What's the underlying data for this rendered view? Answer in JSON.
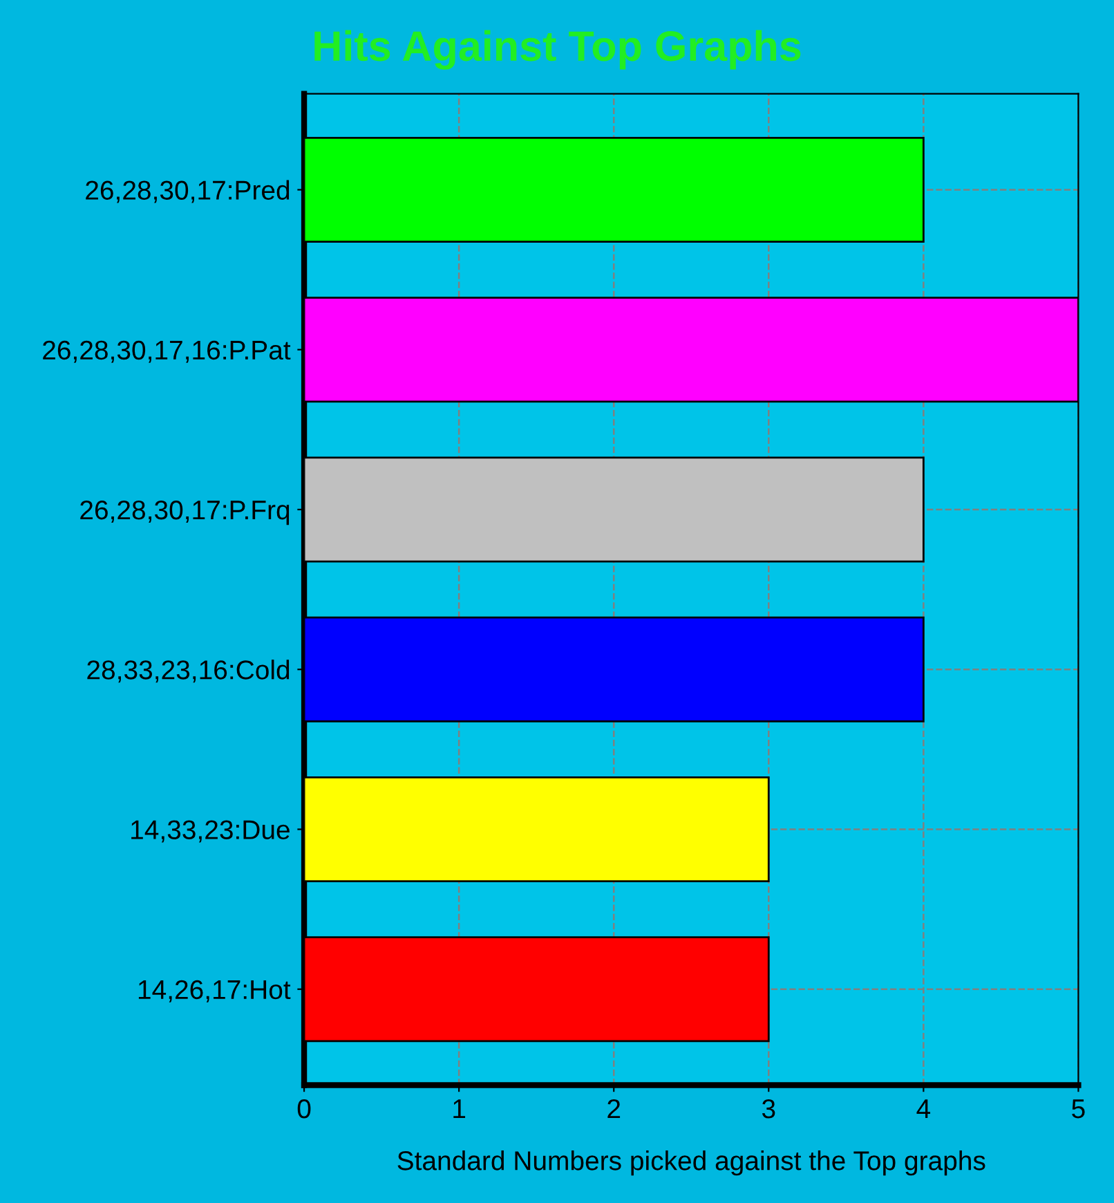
{
  "chart_data": {
    "type": "bar",
    "orientation": "horizontal",
    "title": "Hits Against Top Graphs",
    "xlabel": "Standard Numbers picked against the Top graphs",
    "categories": [
      "26,28,30,17:Pred",
      "26,28,30,17,16:P.Pat",
      "26,28,30,17:P.Frq",
      "28,33,23,16:Cold",
      "14,33,23:Due",
      "14,26,17:Hot"
    ],
    "values": [
      4,
      5,
      4,
      4,
      3,
      3
    ],
    "colors": [
      "#00ff00",
      "#ff00ff",
      "#c0c0c0",
      "#0000ff",
      "#ffff00",
      "#ff0000"
    ],
    "xlim": [
      0,
      5
    ],
    "xticks": [
      0,
      1,
      2,
      3,
      4,
      5
    ],
    "grid": true
  }
}
